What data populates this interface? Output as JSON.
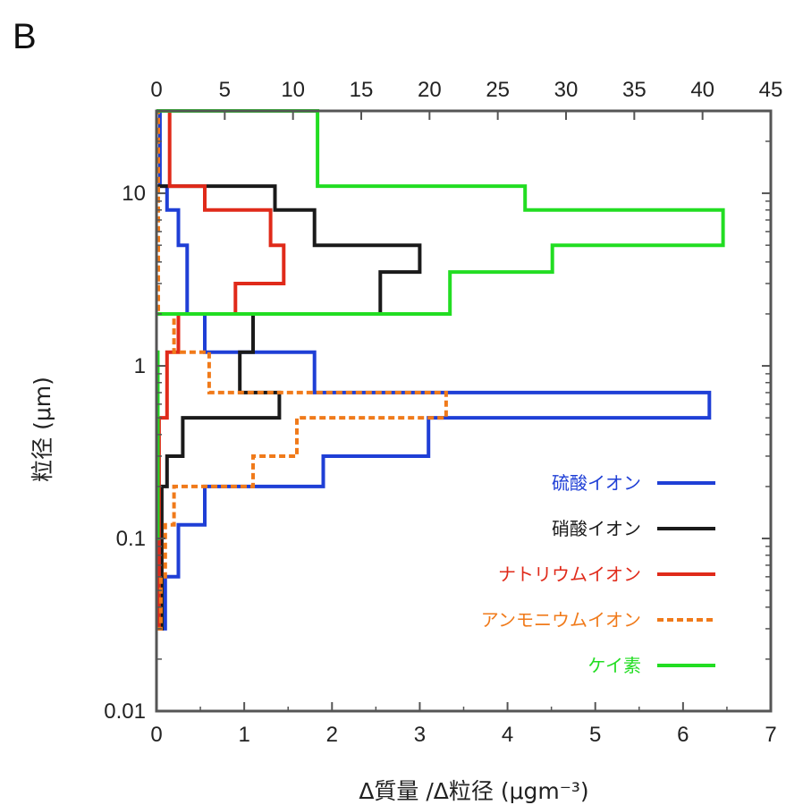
{
  "panel_label": "B",
  "chart_data": {
    "type": "line",
    "subtype": "step-histogram",
    "title": "",
    "xlabel": "Δ質量 /Δ粒径 (μgm⁻³)",
    "ylabel": "粒径 (μm)",
    "xlim": [
      0,
      7
    ],
    "x_top_lim": [
      0,
      45
    ],
    "ylim": [
      0.01,
      30
    ],
    "y_scale": "log",
    "x_ticks": [
      "0",
      "1",
      "2",
      "3",
      "4",
      "5",
      "6",
      "7"
    ],
    "x_top_ticks": [
      "0",
      "5",
      "10",
      "15",
      "20",
      "25",
      "30",
      "35",
      "40",
      "45"
    ],
    "y_ticks": [
      {
        "value": 0.01,
        "label": "0.01"
      },
      {
        "value": 0.1,
        "label": "0.1"
      },
      {
        "value": 1,
        "label": "1"
      },
      {
        "value": 10,
        "label": "10"
      }
    ],
    "legend_position": "lower-right",
    "series": [
      {
        "name": "硫酸イオン",
        "color": "#1f3fd6",
        "dash": "solid",
        "axis": "bottom",
        "bins": [
          {
            "lo": 0.03,
            "hi": 0.06,
            "value": 0.1
          },
          {
            "lo": 0.06,
            "hi": 0.12,
            "value": 0.25
          },
          {
            "lo": 0.12,
            "hi": 0.2,
            "value": 0.55
          },
          {
            "lo": 0.2,
            "hi": 0.3,
            "value": 1.9
          },
          {
            "lo": 0.3,
            "hi": 0.5,
            "value": 3.1
          },
          {
            "lo": 0.5,
            "hi": 0.7,
            "value": 6.3
          },
          {
            "lo": 0.7,
            "hi": 1.2,
            "value": 1.8
          },
          {
            "lo": 1.2,
            "hi": 2.0,
            "value": 0.55
          },
          {
            "lo": 2.0,
            "hi": 5.0,
            "value": 0.35
          },
          {
            "lo": 5.0,
            "hi": 8.0,
            "value": 0.25
          },
          {
            "lo": 8.0,
            "hi": 11.0,
            "value": 0.12
          },
          {
            "lo": 11.0,
            "hi": 30.0,
            "value": 0.04
          }
        ]
      },
      {
        "name": "硝酸イオン",
        "color": "#1a1a1a",
        "dash": "solid",
        "axis": "bottom",
        "bins": [
          {
            "lo": 0.03,
            "hi": 0.2,
            "value": 0.06
          },
          {
            "lo": 0.2,
            "hi": 0.3,
            "value": 0.12
          },
          {
            "lo": 0.3,
            "hi": 0.5,
            "value": 0.3
          },
          {
            "lo": 0.5,
            "hi": 0.7,
            "value": 1.4
          },
          {
            "lo": 0.7,
            "hi": 1.2,
            "value": 0.95
          },
          {
            "lo": 1.2,
            "hi": 2.0,
            "value": 1.1
          },
          {
            "lo": 2.0,
            "hi": 3.5,
            "value": 2.55
          },
          {
            "lo": 3.5,
            "hi": 5.0,
            "value": 3.0
          },
          {
            "lo": 5.0,
            "hi": 8.0,
            "value": 1.8
          },
          {
            "lo": 8.0,
            "hi": 11.0,
            "value": 1.35
          }
        ]
      },
      {
        "name": "ナトリウムイオン",
        "color": "#e02a1a",
        "dash": "solid",
        "axis": "bottom",
        "bins": [
          {
            "lo": 0.03,
            "hi": 0.5,
            "value": 0.03
          },
          {
            "lo": 0.5,
            "hi": 1.2,
            "value": 0.12
          },
          {
            "lo": 1.2,
            "hi": 2.0,
            "value": 0.25
          },
          {
            "lo": 2.0,
            "hi": 3.0,
            "value": 0.9
          },
          {
            "lo": 3.0,
            "hi": 5.0,
            "value": 1.45
          },
          {
            "lo": 5.0,
            "hi": 8.0,
            "value": 1.3
          },
          {
            "lo": 8.0,
            "hi": 11.0,
            "value": 0.55
          },
          {
            "lo": 11.0,
            "hi": 30.0,
            "value": 0.15
          }
        ]
      },
      {
        "name": "アンモニウムイオン",
        "color": "#f07a1a",
        "dash": "dashed",
        "axis": "bottom",
        "bins": [
          {
            "lo": 0.03,
            "hi": 0.06,
            "value": 0.05
          },
          {
            "lo": 0.06,
            "hi": 0.12,
            "value": 0.1
          },
          {
            "lo": 0.12,
            "hi": 0.2,
            "value": 0.2
          },
          {
            "lo": 0.2,
            "hi": 0.3,
            "value": 1.1
          },
          {
            "lo": 0.3,
            "hi": 0.5,
            "value": 1.6
          },
          {
            "lo": 0.5,
            "hi": 0.7,
            "value": 3.3
          },
          {
            "lo": 0.7,
            "hi": 1.2,
            "value": 0.6
          },
          {
            "lo": 1.2,
            "hi": 2.0,
            "value": 0.2
          },
          {
            "lo": 2.0,
            "hi": 30.0,
            "value": 0.02
          }
        ]
      },
      {
        "name": "ケイ素",
        "color": "#22dd22",
        "dash": "solid",
        "axis": "top",
        "bins": [
          {
            "lo": 0.1,
            "hi": 1.2,
            "value": 0.1
          },
          {
            "lo": 2.0,
            "hi": 3.5,
            "value": 21.5
          },
          {
            "lo": 3.5,
            "hi": 5.0,
            "value": 29
          },
          {
            "lo": 5.0,
            "hi": 8.0,
            "value": 41.5
          },
          {
            "lo": 8.0,
            "hi": 11.0,
            "value": 27
          },
          {
            "lo": 11.0,
            "hi": 30.0,
            "value": 11.8
          }
        ]
      }
    ]
  }
}
